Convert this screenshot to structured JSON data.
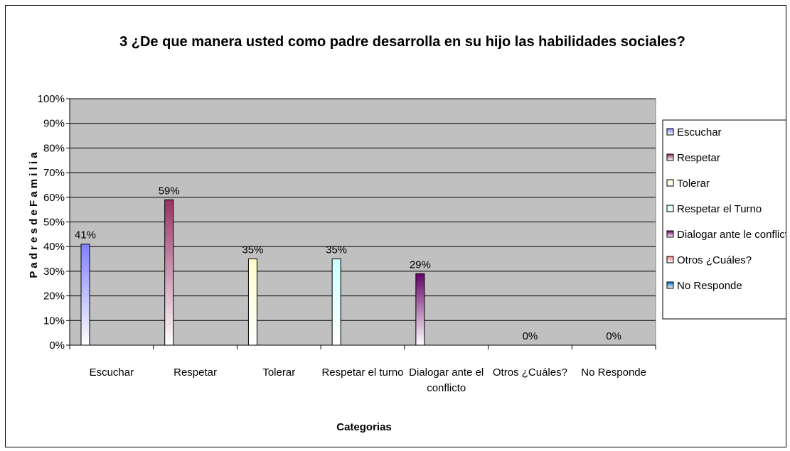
{
  "chart_data": {
    "type": "bar",
    "title": "3 ¿De que manera usted como padre desarrolla en su hijo las habilidades sociales?",
    "xlabel": "Categorias",
    "ylabel": "P a d r e s  d e  F a m i l i a",
    "ylim": [
      0,
      100
    ],
    "yticks": [
      "0%",
      "10%",
      "20%",
      "30%",
      "40%",
      "50%",
      "60%",
      "70%",
      "80%",
      "90%",
      "100%"
    ],
    "grid": true,
    "plot_background": "#c0c0c0",
    "legend_position": "right",
    "categories": [
      [
        "Escuchar"
      ],
      [
        "Respetar"
      ],
      [
        "Tolerar"
      ],
      [
        "Respetar el turno"
      ],
      [
        "Dialogar ante el",
        "conflicto"
      ],
      [
        "Otros ¿Cuáles?"
      ],
      [
        "No Responde"
      ]
    ],
    "values": [
      41,
      59,
      35,
      35,
      29,
      0,
      0
    ],
    "data_labels": [
      "41%",
      "59%",
      "35%",
      "35%",
      "29%",
      "0%",
      "0%"
    ],
    "colors": [
      "#8080ff",
      "#993366",
      "#ffffcc",
      "#ccffff",
      "#660066",
      "#ff8080",
      "#0066cc"
    ],
    "legend": [
      "Escuchar",
      "Respetar",
      "Tolerar",
      "Respetar el Turno",
      "Dialogar ante le conflicto",
      "Otros ¿Cuáles?",
      "No Responde"
    ]
  }
}
